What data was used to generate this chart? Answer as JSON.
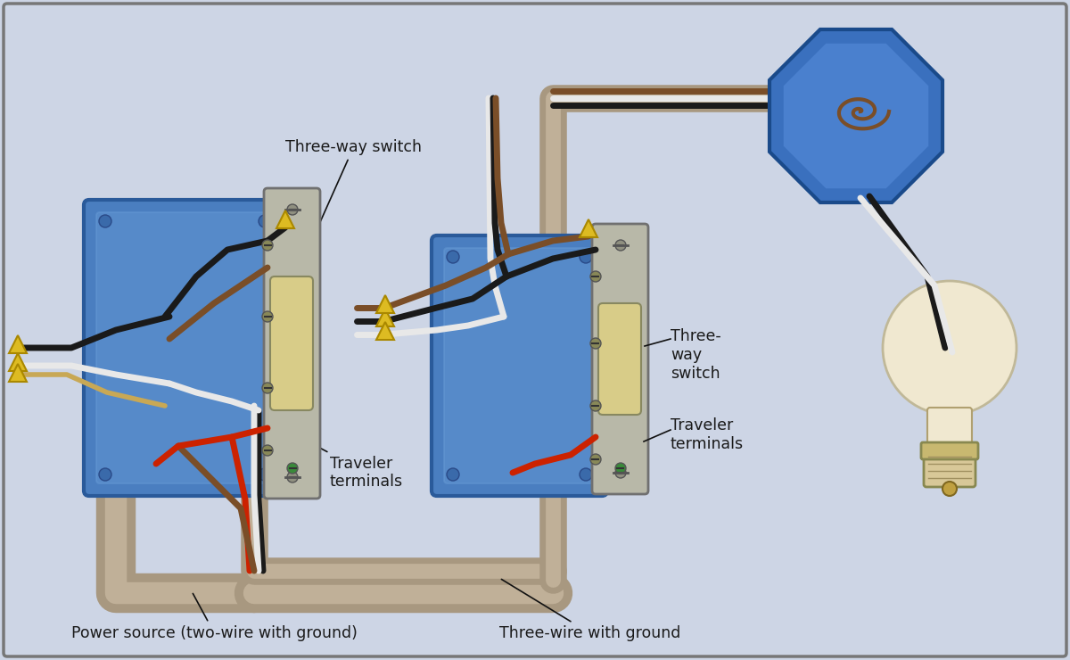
{
  "bg_color": "#cdd5e5",
  "border_color": "#777777",
  "labels": {
    "three_way_switch_left": "Three-way switch",
    "three_way_switch_right": "Three-\nway\nswitch",
    "traveler_left": "Traveler\nterminals",
    "traveler_right": "Traveler\nterminals",
    "power_source": "Power source (two-wire with ground)",
    "three_wire": "Three-wire with ground"
  },
  "box_blue": "#4a7ec0",
  "box_blue_light": "#6a9ed8",
  "box_blue_dark": "#2a5a9a",
  "switch_bracket": "#b8b8a8",
  "switch_paddle": "#d8cc88",
  "conduit_outer": "#a89880",
  "conduit_inner": "#c0b098",
  "wire_black": "#1a1a1a",
  "wire_white": "#e8e8e8",
  "wire_red": "#cc2200",
  "wire_brown": "#7a4e28",
  "wire_gray": "#666666",
  "wire_bare": "#c8a855",
  "octagon_outer": "#1a4a8a",
  "octagon_fill": "#3a70be",
  "octagon_inner": "#5a90de",
  "bulb_body": "#f0e8d0",
  "bulb_base": "#d8c898",
  "text_color": "#1a1a1a",
  "screw_color": "#909080",
  "screw_green": "#3a8a3a",
  "wirenut_yellow": "#ddbb22",
  "wirenut_edge": "#aa8800"
}
